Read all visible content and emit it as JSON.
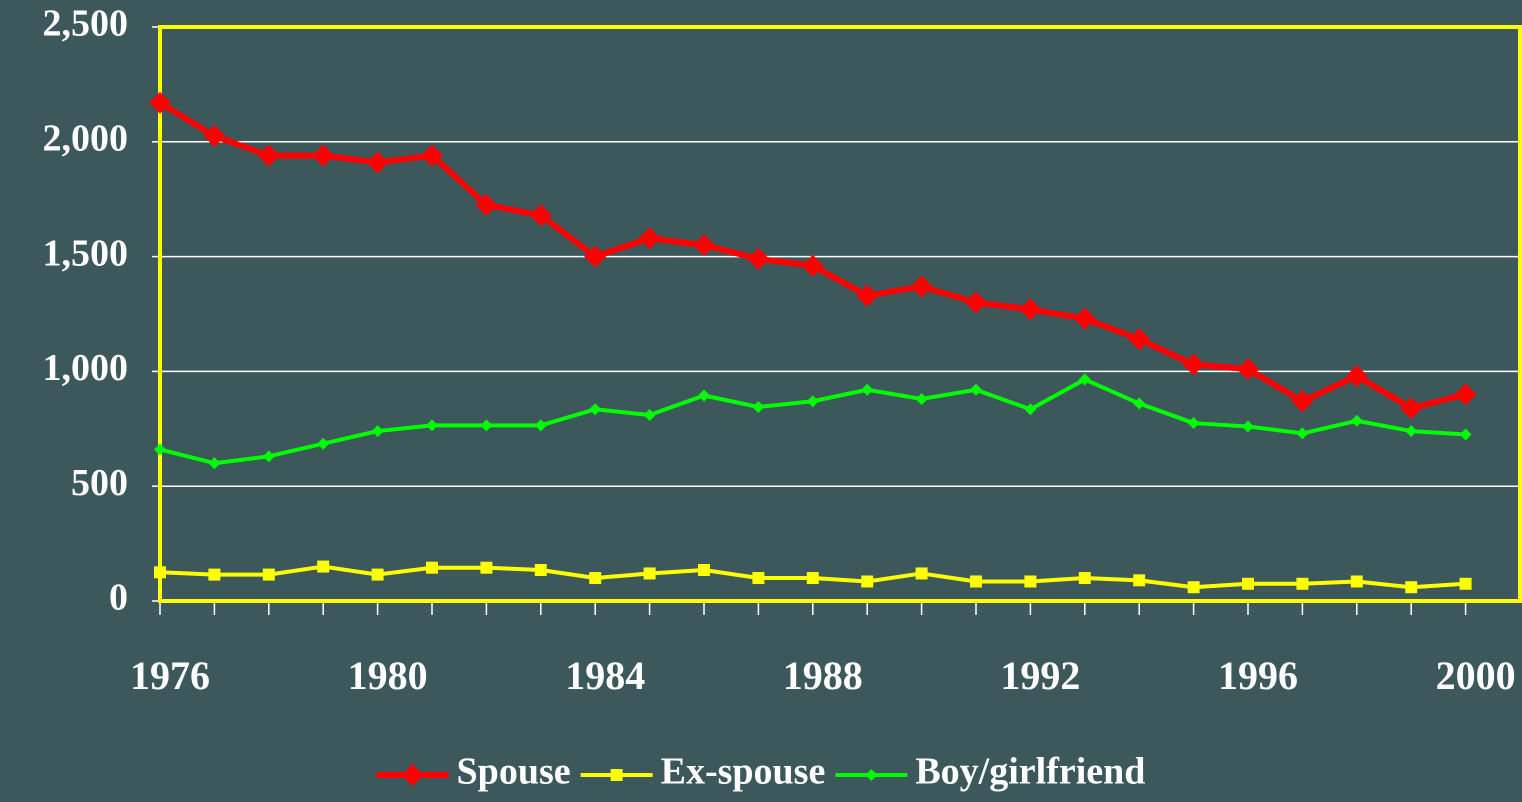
{
  "chart_data": {
    "type": "line",
    "x": [
      1976,
      1977,
      1978,
      1979,
      1980,
      1981,
      1982,
      1983,
      1984,
      1985,
      1986,
      1987,
      1988,
      1989,
      1990,
      1991,
      1992,
      1993,
      1994,
      1995,
      1996,
      1997,
      1998,
      1999,
      2000
    ],
    "series": [
      {
        "name": "Spouse",
        "color": "#ff0000",
        "marker": "diamond",
        "values": [
          2170,
          2025,
          1940,
          1940,
          1910,
          1940,
          1725,
          1680,
          1500,
          1580,
          1550,
          1490,
          1460,
          1330,
          1370,
          1300,
          1270,
          1230,
          1140,
          1030,
          1010,
          870,
          980,
          840,
          900
        ]
      },
      {
        "name": "Ex-spouse",
        "color": "#ffff00",
        "marker": "square",
        "values": [
          125,
          115,
          115,
          150,
          115,
          145,
          145,
          135,
          100,
          120,
          135,
          100,
          100,
          85,
          120,
          85,
          85,
          100,
          90,
          60,
          75,
          75,
          85,
          60,
          75
        ]
      },
      {
        "name": "Boy/girlfriend",
        "color": "#00ff00",
        "marker": "small-diamond",
        "values": [
          660,
          600,
          630,
          685,
          740,
          765,
          765,
          765,
          835,
          810,
          895,
          845,
          870,
          920,
          880,
          920,
          835,
          965,
          860,
          775,
          760,
          730,
          785,
          740,
          725
        ]
      }
    ],
    "xlim": [
      1976,
      2001
    ],
    "xticks": [
      1976,
      1980,
      1984,
      1988,
      1992,
      1996,
      2000
    ],
    "ylim": [
      0,
      2500
    ],
    "yticks": [
      0,
      500,
      {
        "value": 1000,
        "label": "1,000"
      },
      {
        "value": 1500,
        "label": "1,500"
      },
      {
        "value": 2000,
        "label": "2,000"
      },
      {
        "value": 2500,
        "label": "2,500"
      }
    ],
    "grid": true,
    "legend": "bottom"
  }
}
